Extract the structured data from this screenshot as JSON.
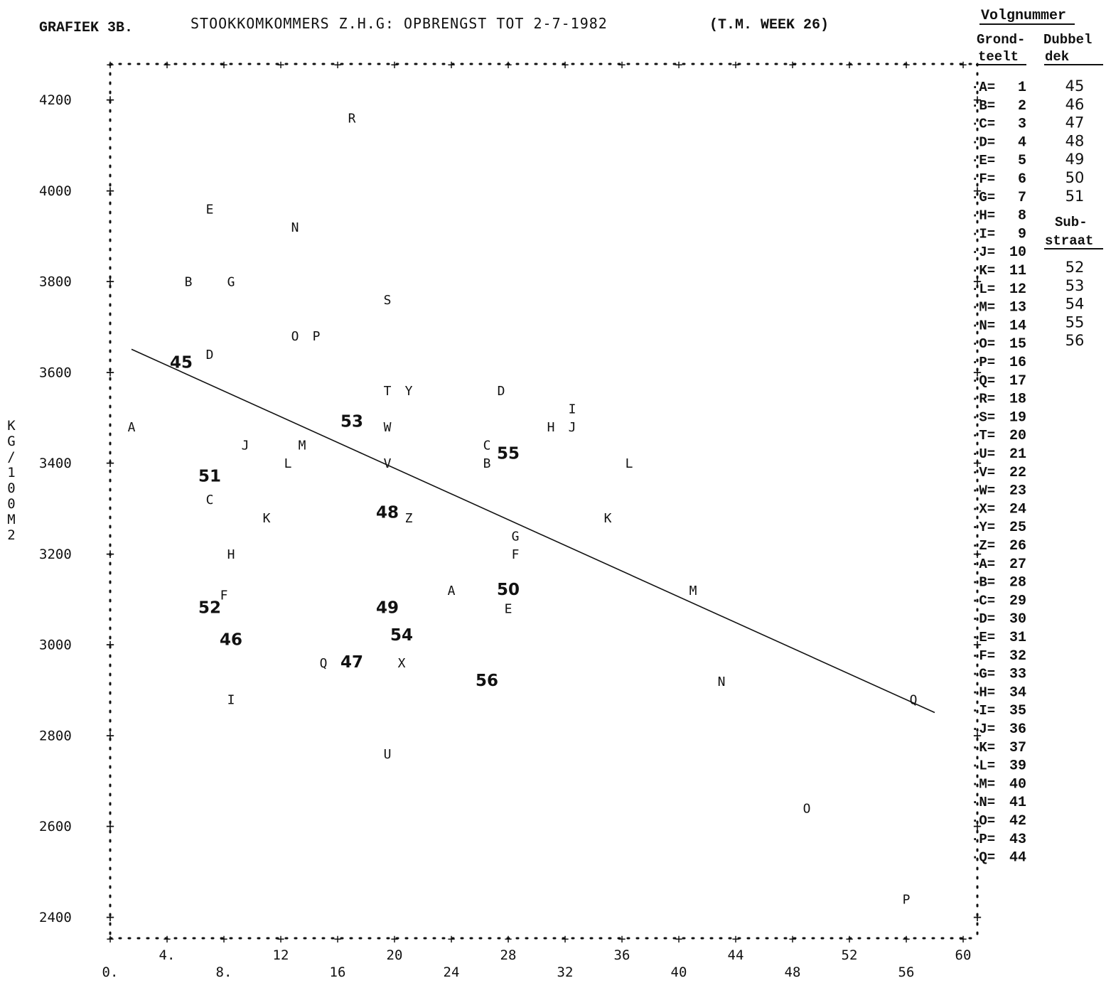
{
  "header": {
    "grafiek": "GRAFIEK 3B.",
    "title": "STOOKKOMKOMMERS Z.H.G: OPBRENGST TOT 2-7-1982",
    "week": "(T.M. WEEK 26)"
  },
  "legend": {
    "heading": "Volgnummer",
    "col1_line1": "Grond-",
    "col1_line2": "teelt",
    "col2_line1": "Dubbel",
    "col2_line2": "dek",
    "sub_line1": "Sub-",
    "sub_line2": "straat",
    "grondteelt": [
      {
        "letter": "A",
        "num": "1"
      },
      {
        "letter": "B",
        "num": "2"
      },
      {
        "letter": "C",
        "num": "3"
      },
      {
        "letter": "D",
        "num": "4"
      },
      {
        "letter": "E",
        "num": "5"
      },
      {
        "letter": "F",
        "num": "6"
      },
      {
        "letter": "G",
        "num": "7"
      },
      {
        "letter": "H",
        "num": "8"
      },
      {
        "letter": "I",
        "num": "9"
      },
      {
        "letter": "J",
        "num": "10"
      },
      {
        "letter": "K",
        "num": "11"
      },
      {
        "letter": "L",
        "num": "12"
      },
      {
        "letter": "M",
        "num": "13"
      },
      {
        "letter": "N",
        "num": "14"
      },
      {
        "letter": "O",
        "num": "15"
      },
      {
        "letter": "P",
        "num": "16"
      },
      {
        "letter": "Q",
        "num": "17"
      },
      {
        "letter": "R",
        "num": "18"
      },
      {
        "letter": "S",
        "num": "19"
      },
      {
        "letter": "T",
        "num": "20"
      },
      {
        "letter": "U",
        "num": "21"
      },
      {
        "letter": "V",
        "num": "22"
      },
      {
        "letter": "W",
        "num": "23"
      },
      {
        "letter": "X",
        "num": "24"
      },
      {
        "letter": "Y",
        "num": "25"
      },
      {
        "letter": "Z",
        "num": "26"
      },
      {
        "letter": "A",
        "num": "27"
      },
      {
        "letter": "B",
        "num": "28"
      },
      {
        "letter": "C",
        "num": "29"
      },
      {
        "letter": "D",
        "num": "30"
      },
      {
        "letter": "E",
        "num": "31"
      },
      {
        "letter": "F",
        "num": "32"
      },
      {
        "letter": "G",
        "num": "33"
      },
      {
        "letter": "H",
        "num": "34"
      },
      {
        "letter": "I",
        "num": "35"
      },
      {
        "letter": "J",
        "num": "36"
      },
      {
        "letter": "K",
        "num": "37"
      },
      {
        "letter": "L",
        "num": "39"
      },
      {
        "letter": "M",
        "num": "40"
      },
      {
        "letter": "N",
        "num": "41"
      },
      {
        "letter": "O",
        "num": "42"
      },
      {
        "letter": "P",
        "num": "43"
      },
      {
        "letter": "Q",
        "num": "44"
      }
    ],
    "dubbeldek": [
      "45",
      "46",
      "47",
      "48",
      "49",
      "50",
      "51"
    ],
    "substraat": [
      "52",
      "53",
      "54",
      "55",
      "56"
    ]
  },
  "chart_data": {
    "type": "scatter",
    "ylabel": "KG/100M2",
    "xlim": [
      0,
      60
    ],
    "ylim": [
      2400,
      4200
    ],
    "xticks_upper": [
      "4.",
      "12",
      "20",
      "28",
      "36",
      "44",
      "52",
      "60"
    ],
    "xticks_upper_values": [
      4,
      12,
      20,
      28,
      36,
      44,
      52,
      60
    ],
    "xticks_lower": [
      "0.",
      "8.",
      "16",
      "24",
      "32",
      "40",
      "48",
      "56"
    ],
    "xticks_lower_values": [
      0,
      8,
      16,
      24,
      32,
      40,
      48,
      56
    ],
    "yticks": [
      4200,
      4000,
      3800,
      3600,
      3400,
      3200,
      3000,
      2800,
      2600,
      2400
    ],
    "grid": false,
    "legend_position": "right",
    "regression_line": {
      "x1": 1.5,
      "y1": 3650,
      "x2": 58,
      "y2": 2850
    },
    "points": [
      {
        "label": "A",
        "x": 1.5,
        "y": 3480
      },
      {
        "label": "B",
        "x": 5.5,
        "y": 3800
      },
      {
        "label": "C",
        "x": 7,
        "y": 3320
      },
      {
        "label": "D",
        "x": 7,
        "y": 3640
      },
      {
        "label": "E",
        "x": 7,
        "y": 3960
      },
      {
        "label": "F",
        "x": 8,
        "y": 3110
      },
      {
        "label": "G",
        "x": 8.5,
        "y": 3800
      },
      {
        "label": "H",
        "x": 8.5,
        "y": 3200
      },
      {
        "label": "I",
        "x": 8.5,
        "y": 2880
      },
      {
        "label": "J",
        "x": 9.5,
        "y": 3440
      },
      {
        "label": "K",
        "x": 11,
        "y": 3280
      },
      {
        "label": "L",
        "x": 12.5,
        "y": 3400
      },
      {
        "label": "M",
        "x": 13.5,
        "y": 3440
      },
      {
        "label": "N",
        "x": 13,
        "y": 3920
      },
      {
        "label": "O",
        "x": 13,
        "y": 3680
      },
      {
        "label": "P",
        "x": 14.5,
        "y": 3680
      },
      {
        "label": "Q",
        "x": 15,
        "y": 2960
      },
      {
        "label": "R",
        "x": 17,
        "y": 4160
      },
      {
        "label": "S",
        "x": 19.5,
        "y": 3760
      },
      {
        "label": "T",
        "x": 19.5,
        "y": 3560
      },
      {
        "label": "U",
        "x": 19.5,
        "y": 2760
      },
      {
        "label": "V",
        "x": 19.5,
        "y": 3400
      },
      {
        "label": "W",
        "x": 19.5,
        "y": 3480
      },
      {
        "label": "X",
        "x": 20.5,
        "y": 2960
      },
      {
        "label": "Y",
        "x": 21,
        "y": 3560
      },
      {
        "label": "Z",
        "x": 21,
        "y": 3280
      },
      {
        "label": "A",
        "x": 24,
        "y": 3120
      },
      {
        "label": "B",
        "x": 26.5,
        "y": 3400
      },
      {
        "label": "C",
        "x": 26.5,
        "y": 3440
      },
      {
        "label": "D",
        "x": 27.5,
        "y": 3560
      },
      {
        "label": "E",
        "x": 28,
        "y": 3080
      },
      {
        "label": "F",
        "x": 28.5,
        "y": 3200
      },
      {
        "label": "G",
        "x": 28.5,
        "y": 3240
      },
      {
        "label": "H",
        "x": 31,
        "y": 3480
      },
      {
        "label": "I",
        "x": 32.5,
        "y": 3520
      },
      {
        "label": "J",
        "x": 32.5,
        "y": 3480
      },
      {
        "label": "K",
        "x": 35,
        "y": 3280
      },
      {
        "label": "L",
        "x": 36.5,
        "y": 3400
      },
      {
        "label": "M",
        "x": 41,
        "y": 3120
      },
      {
        "label": "N",
        "x": 43,
        "y": 2920
      },
      {
        "label": "O",
        "x": 49,
        "y": 2640
      },
      {
        "label": "P",
        "x": 56,
        "y": 2440
      },
      {
        "label": "Q",
        "x": 56.5,
        "y": 2880
      },
      {
        "label": "45",
        "x": 5,
        "y": 3620
      },
      {
        "label": "46",
        "x": 8.5,
        "y": 3010
      },
      {
        "label": "47",
        "x": 17,
        "y": 2960
      },
      {
        "label": "48",
        "x": 19.5,
        "y": 3290
      },
      {
        "label": "49",
        "x": 19.5,
        "y": 3080
      },
      {
        "label": "50",
        "x": 28,
        "y": 3120
      },
      {
        "label": "51",
        "x": 7,
        "y": 3370
      },
      {
        "label": "52",
        "x": 7,
        "y": 3080
      },
      {
        "label": "53",
        "x": 17,
        "y": 3490
      },
      {
        "label": "54",
        "x": 20.5,
        "y": 3020
      },
      {
        "label": "55",
        "x": 28,
        "y": 3420
      },
      {
        "label": "56",
        "x": 26.5,
        "y": 2920
      }
    ]
  }
}
